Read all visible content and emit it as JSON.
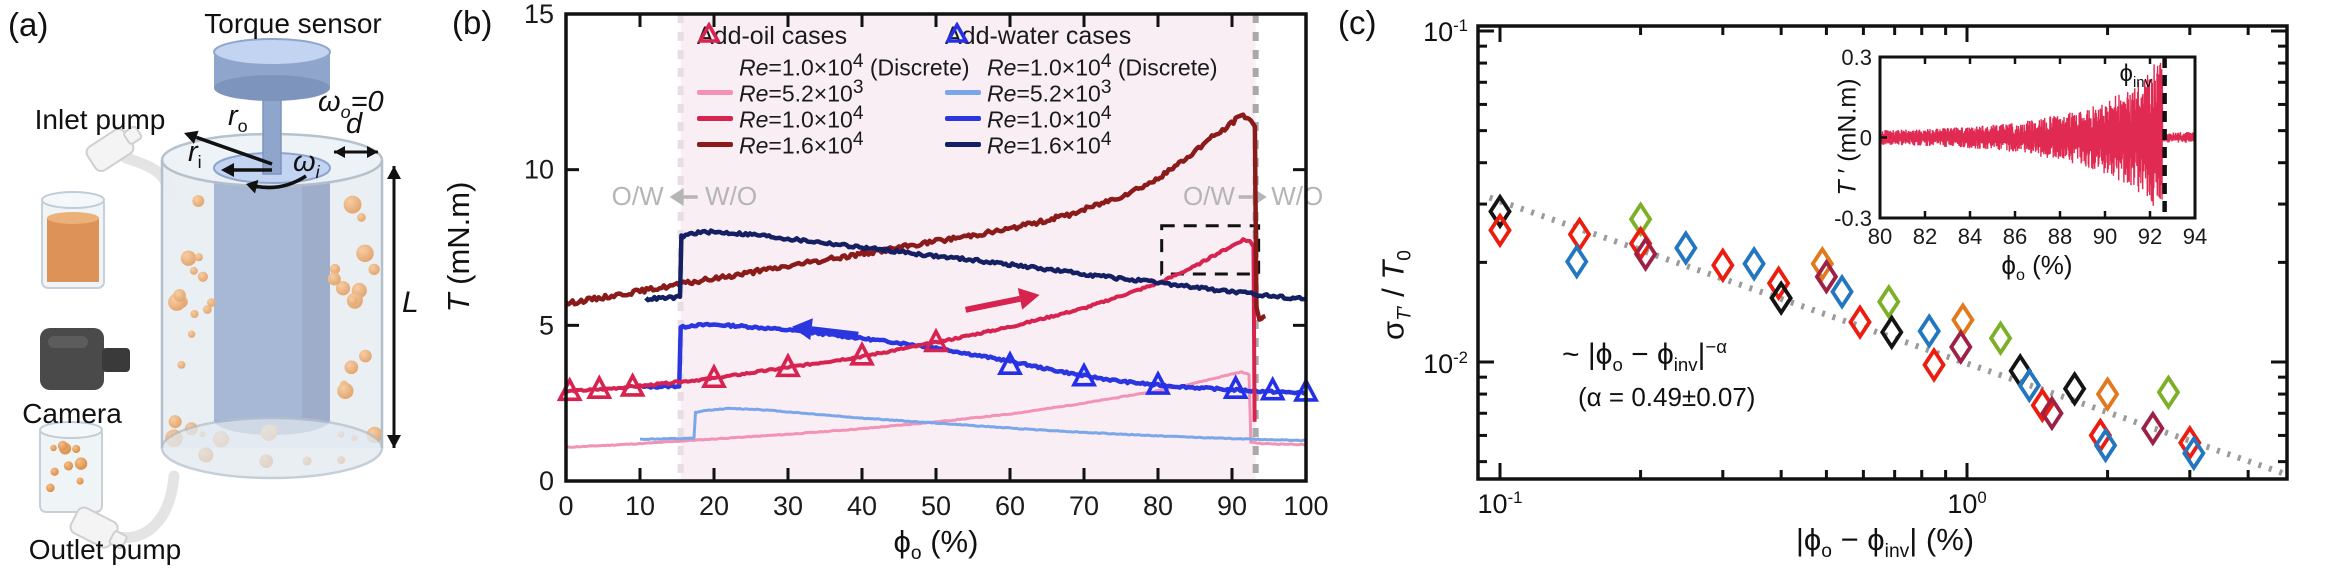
{
  "panel_a": {
    "label": "(a)",
    "torque_sensor": "Torque sensor",
    "inlet_pump": "Inlet pump",
    "camera": "Camera",
    "outlet_pump": "Outlet pump",
    "omega_o": "ω_{o}=0",
    "r_o": "*r*_{o}",
    "r_i": "*r*_{i}",
    "omega_i": "ω_{i}",
    "d": "*d*",
    "L": "*L*",
    "colors": {
      "steel": "#8fa5cc",
      "steel_dark": "#7d94bd",
      "steel_light": "#c3d4f2",
      "vessel": "#e2e9f0",
      "vessel_edge": "#b3bfca",
      "rim": "#eef3f8",
      "droplet": "#d98a44",
      "droplet_hi": "#f4bf8a",
      "camera": "#4a4a4a",
      "camera_dark": "#3a3a3a",
      "tube": "#e4e4e4",
      "funnel": "#f4f4f4",
      "funnel_edge": "#cfcfcf",
      "liquid": "#dd9257"
    }
  },
  "chart_data": [
    {
      "id": "b",
      "type": "line",
      "label": "(b)",
      "xlabel": "ϕ_{o} (%)",
      "ylabel": "*T* (mN.m)",
      "xlim": [
        0,
        100
      ],
      "ylim": [
        0,
        15
      ],
      "xticks": [
        0,
        10,
        20,
        30,
        40,
        50,
        60,
        70,
        80,
        90,
        100
      ],
      "yticks": [
        0,
        5,
        10,
        15
      ],
      "grid": false,
      "shade": {
        "x0": 15.5,
        "x1": 93.2,
        "color": "#f8eef4"
      },
      "inv_lines": [
        {
          "x": 15.5,
          "color": "#e8dde3"
        },
        {
          "x": 93.2,
          "color": "#a9a9a9"
        }
      ],
      "dash_rect": {
        "x0": 80.5,
        "x1": 93.6,
        "y0": 6.65,
        "y1": 8.2
      },
      "phase_labels": {
        "ow": "O/W",
        "wo": "W/O"
      },
      "legend": {
        "col1_header": "Add-oil cases",
        "col2_header": "Add-water cases",
        "col1": [
          {
            "marker": "triangle",
            "color": "#d6234f",
            "label": "*Re*=1.0×10^{4} (Discrete)"
          },
          {
            "marker": "line",
            "color": "#f293b6",
            "label": "*Re*=5.2×10^{3}"
          },
          {
            "marker": "line",
            "color": "#d6234f",
            "label": "*Re*=1.0×10^{4}"
          },
          {
            "marker": "line",
            "color": "#8b1a1a",
            "label": "*Re*=1.6×10^{4}"
          }
        ],
        "col2": [
          {
            "marker": "triangle",
            "color": "#2430e8",
            "label": "*Re*=1.0×10^{4} (Discrete)"
          },
          {
            "marker": "line",
            "color": "#7ba7ea",
            "label": "*Re*=5.2×10^{3}"
          },
          {
            "marker": "line",
            "color": "#2b36df",
            "label": "*Re*=1.0×10^{4}"
          },
          {
            "marker": "line",
            "color": "#151f63",
            "label": "*Re*=1.6×10^{4}"
          }
        ]
      },
      "series": [
        {
          "name": "add-oil-Re5.2e3",
          "color": "#f293b6",
          "width": 3,
          "jitter": 0.012,
          "seed": 11,
          "points": [
            [
              0,
              1.08
            ],
            [
              10,
              1.2
            ],
            [
              20,
              1.35
            ],
            [
              30,
              1.5
            ],
            [
              40,
              1.68
            ],
            [
              50,
              1.9
            ],
            [
              60,
              2.15
            ],
            [
              70,
              2.5
            ],
            [
              80,
              2.9
            ],
            [
              85,
              3.15
            ],
            [
              88,
              3.32
            ],
            [
              90,
              3.44
            ],
            [
              91.3,
              3.5
            ],
            [
              92.3,
              3.42
            ],
            [
              92.55,
              1.25
            ],
            [
              94,
              1.2
            ],
            [
              100,
              1.17
            ]
          ]
        },
        {
          "name": "add-water-Re5.2e3",
          "color": "#7ba7ea",
          "width": 3,
          "jitter": 0.012,
          "seed": 12,
          "points": [
            [
              10,
              1.34
            ],
            [
              17.3,
              1.37
            ],
            [
              17.5,
              2.2
            ],
            [
              19,
              2.27
            ],
            [
              22,
              2.33
            ],
            [
              26,
              2.3
            ],
            [
              30,
              2.22
            ],
            [
              40,
              2.02
            ],
            [
              50,
              1.86
            ],
            [
              60,
              1.7
            ],
            [
              70,
              1.56
            ],
            [
              80,
              1.45
            ],
            [
              90,
              1.36
            ],
            [
              100,
              1.3
            ]
          ]
        },
        {
          "name": "add-water-Re1.0e4",
          "color": "#2b36df",
          "width": 4.5,
          "jitter": 0.035,
          "seed": 13,
          "points": [
            [
              10.3,
              3.02
            ],
            [
              15.3,
              3.05
            ],
            [
              15.5,
              4.93
            ],
            [
              17,
              5.0
            ],
            [
              20,
              5.02
            ],
            [
              24,
              4.97
            ],
            [
              30,
              4.85
            ],
            [
              35,
              4.72
            ],
            [
              40,
              4.58
            ],
            [
              45,
              4.44
            ],
            [
              50,
              4.28
            ],
            [
              55,
              4.06
            ],
            [
              60,
              3.85
            ],
            [
              65,
              3.6
            ],
            [
              70,
              3.38
            ],
            [
              75,
              3.2
            ],
            [
              80,
              3.08
            ],
            [
              85,
              3.0
            ],
            [
              90,
              2.93
            ],
            [
              95,
              2.87
            ],
            [
              100,
              2.83
            ]
          ]
        },
        {
          "name": "add-oil-Re1.0e4",
          "color": "#d6234f",
          "width": 4,
          "jitter": 0.03,
          "seed": 14,
          "points": [
            [
              0,
              2.88
            ],
            [
              5,
              2.95
            ],
            [
              10,
              3.05
            ],
            [
              20,
              3.3
            ],
            [
              30,
              3.65
            ],
            [
              40,
              4.0
            ],
            [
              50,
              4.45
            ],
            [
              60,
              4.95
            ],
            [
              70,
              5.55
            ],
            [
              80,
              6.35
            ],
            [
              85,
              6.9
            ],
            [
              88,
              7.3
            ],
            [
              90,
              7.55
            ],
            [
              91.5,
              7.75
            ],
            [
              92.4,
              7.7
            ],
            [
              92.9,
              7.55
            ],
            [
              93.05,
              1.9
            ]
          ]
        },
        {
          "name": "add-oil-Re1.6e4",
          "color": "#8b1a1a",
          "width": 4.5,
          "jitter": 0.07,
          "seed": 15,
          "points": [
            [
              0,
              5.7
            ],
            [
              10,
              6.1
            ],
            [
              20,
              6.5
            ],
            [
              30,
              6.9
            ],
            [
              40,
              7.3
            ],
            [
              50,
              7.7
            ],
            [
              60,
              8.1
            ],
            [
              68,
              8.55
            ],
            [
              75,
              9.15
            ],
            [
              80,
              9.7
            ],
            [
              84,
              10.4
            ],
            [
              87,
              11.0
            ],
            [
              89,
              11.3
            ],
            [
              90.5,
              11.6
            ],
            [
              91.5,
              11.75
            ],
            [
              92.6,
              11.6
            ],
            [
              93.1,
              11.35
            ],
            [
              93.3,
              5.55
            ],
            [
              93.7,
              5.25
            ],
            [
              94.5,
              5.3
            ]
          ]
        },
        {
          "name": "add-water-Re1.6e4",
          "color": "#151f63",
          "width": 4.5,
          "jitter": 0.05,
          "seed": 16,
          "points": [
            [
              10.8,
              5.85
            ],
            [
              15.4,
              5.9
            ],
            [
              15.6,
              7.85
            ],
            [
              17,
              7.95
            ],
            [
              19,
              8.0
            ],
            [
              22,
              7.97
            ],
            [
              26,
              7.9
            ],
            [
              30,
              7.78
            ],
            [
              35,
              7.65
            ],
            [
              40,
              7.5
            ],
            [
              45,
              7.37
            ],
            [
              50,
              7.22
            ],
            [
              55,
              7.1
            ],
            [
              60,
              6.95
            ],
            [
              65,
              6.8
            ],
            [
              70,
              6.65
            ],
            [
              75,
              6.5
            ],
            [
              80,
              6.37
            ],
            [
              85,
              6.22
            ],
            [
              90,
              6.08
            ],
            [
              95,
              5.95
            ],
            [
              100,
              5.85
            ]
          ]
        }
      ],
      "markers": [
        {
          "name": "add-oil-discrete",
          "color": "#d6234f",
          "points": [
            [
              0.5,
              2.88
            ],
            [
              4.5,
              2.95
            ],
            [
              9,
              3.02
            ],
            [
              20,
              3.3
            ],
            [
              30,
              3.65
            ],
            [
              40,
              4.02
            ],
            [
              50,
              4.45
            ]
          ]
        },
        {
          "name": "add-water-discrete",
          "color": "#2430e8",
          "points": [
            [
              60,
              3.72
            ],
            [
              70,
              3.35
            ],
            [
              80,
              3.08
            ],
            [
              90.5,
              2.95
            ],
            [
              95.5,
              2.9
            ],
            [
              100,
              2.86
            ]
          ]
        }
      ],
      "arrows": [
        {
          "color": "#2b36df",
          "from": [
            39.5,
            4.7
          ],
          "to": [
            30.5,
            4.95
          ]
        },
        {
          "color": "#d6234f",
          "from": [
            54,
            5.5
          ],
          "to": [
            64,
            5.98
          ]
        }
      ]
    },
    {
      "id": "c",
      "type": "scatter",
      "label": "(c)",
      "xlabel": "|ϕ_{o} − ϕ_{inv}| (%)",
      "ylabel": "σ_{*T*′} / *T*_{0}",
      "scale": "log-log",
      "xlim": [
        0.09,
        4.9
      ],
      "ylim": [
        0.00443,
        0.1035
      ],
      "xtick_labels": {
        "left": "10^{-1}",
        "mid": "10^{0}"
      },
      "ytick_labels": {
        "top": "10^{-1}",
        "bottom": "10^{-2}"
      },
      "xticks_major": [
        0.1,
        1
      ],
      "xticks_minor": [
        0.2,
        0.3,
        0.4,
        0.5,
        0.6,
        0.7,
        0.8,
        0.9,
        2,
        3,
        4
      ],
      "yticks_major": [
        0.1,
        0.01
      ],
      "yticks_minor": [
        0.005,
        0.006,
        0.007,
        0.008,
        0.009,
        0.02,
        0.03,
        0.04,
        0.05,
        0.06,
        0.07,
        0.08,
        0.09
      ],
      "fit": {
        "annotation": "~ |ϕ_{o} − ϕ_{inv}|^{−α}",
        "alpha_annotation": "(α = 0.49±0.07)",
        "A": 0.0099,
        "alpha": 0.49,
        "x0": 0.095,
        "x1": 4.8,
        "color": "#9b9b9b"
      },
      "palette": {
        "black": "#141414",
        "red": "#ec1c0e",
        "blue": "#2277c0",
        "green": "#7bb027",
        "orange": "#e2791b",
        "maroon": "#9e2045"
      },
      "points": [
        {
          "x": 0.1,
          "y": 0.0285,
          "c": "black"
        },
        {
          "x": 0.1,
          "y": 0.025,
          "c": "red"
        },
        {
          "x": 0.148,
          "y": 0.0243,
          "c": "red"
        },
        {
          "x": 0.146,
          "y": 0.0201,
          "c": "blue"
        },
        {
          "x": 0.2,
          "y": 0.027,
          "c": "green"
        },
        {
          "x": 0.2,
          "y": 0.0228,
          "c": "red"
        },
        {
          "x": 0.205,
          "y": 0.0212,
          "c": "maroon"
        },
        {
          "x": 0.25,
          "y": 0.0221,
          "c": "blue"
        },
        {
          "x": 0.3,
          "y": 0.0196,
          "c": "red"
        },
        {
          "x": 0.35,
          "y": 0.0198,
          "c": "blue"
        },
        {
          "x": 0.395,
          "y": 0.0173,
          "c": "red"
        },
        {
          "x": 0.4,
          "y": 0.0156,
          "c": "black"
        },
        {
          "x": 0.49,
          "y": 0.0198,
          "c": "orange"
        },
        {
          "x": 0.5,
          "y": 0.0181,
          "c": "maroon"
        },
        {
          "x": 0.54,
          "y": 0.0163,
          "c": "blue"
        },
        {
          "x": 0.59,
          "y": 0.0132,
          "c": "red"
        },
        {
          "x": 0.68,
          "y": 0.0152,
          "c": "green"
        },
        {
          "x": 0.69,
          "y": 0.0123,
          "c": "black"
        },
        {
          "x": 0.83,
          "y": 0.0124,
          "c": "blue"
        },
        {
          "x": 0.85,
          "y": 0.0098,
          "c": "red"
        },
        {
          "x": 0.98,
          "y": 0.0134,
          "c": "orange"
        },
        {
          "x": 0.97,
          "y": 0.0111,
          "c": "maroon"
        },
        {
          "x": 1.18,
          "y": 0.0118,
          "c": "green"
        },
        {
          "x": 1.3,
          "y": 0.0094,
          "c": "black"
        },
        {
          "x": 1.36,
          "y": 0.0085,
          "c": "blue"
        },
        {
          "x": 1.45,
          "y": 0.0074,
          "c": "red"
        },
        {
          "x": 1.52,
          "y": 0.007,
          "c": "maroon"
        },
        {
          "x": 1.7,
          "y": 0.0083,
          "c": "black"
        },
        {
          "x": 2.0,
          "y": 0.008,
          "c": "orange"
        },
        {
          "x": 2.7,
          "y": 0.0081,
          "c": "green"
        },
        {
          "x": 1.93,
          "y": 0.006,
          "c": "red"
        },
        {
          "x": 1.98,
          "y": 0.0056,
          "c": "blue"
        },
        {
          "x": 2.5,
          "y": 0.0063,
          "c": "maroon"
        },
        {
          "x": 3.0,
          "y": 0.0057,
          "c": "red"
        },
        {
          "x": 3.06,
          "y": 0.0053,
          "c": "blue"
        }
      ]
    },
    {
      "id": "c_inset",
      "type": "line",
      "xlabel": "ϕ_{o} (%)",
      "ylabel": "*T* ′ (mN.m)",
      "xlim": [
        80,
        94
      ],
      "ylim": [
        -0.3,
        0.3
      ],
      "xticks": [
        80,
        82,
        84,
        86,
        88,
        90,
        92,
        94
      ],
      "yticks": [
        0.3,
        0,
        -0.3
      ],
      "ytick_labels": [
        "0.3",
        "0",
        "-0.3"
      ],
      "phi_inv": 92.65,
      "phi_inv_label": "ϕ_{inv}",
      "signal_color": "#e02a52",
      "envelope": [
        [
          80,
          0.028
        ],
        [
          82,
          0.032
        ],
        [
          84,
          0.04
        ],
        [
          86,
          0.055
        ],
        [
          87,
          0.07
        ],
        [
          88,
          0.085
        ],
        [
          89,
          0.105
        ],
        [
          90,
          0.135
        ],
        [
          90.8,
          0.17
        ],
        [
          91.5,
          0.21
        ],
        [
          92,
          0.25
        ],
        [
          92.3,
          0.29
        ],
        [
          92.55,
          0.295
        ]
      ],
      "post_envelope": [
        [
          92.7,
          0.018
        ],
        [
          94,
          0.022
        ]
      ]
    }
  ]
}
